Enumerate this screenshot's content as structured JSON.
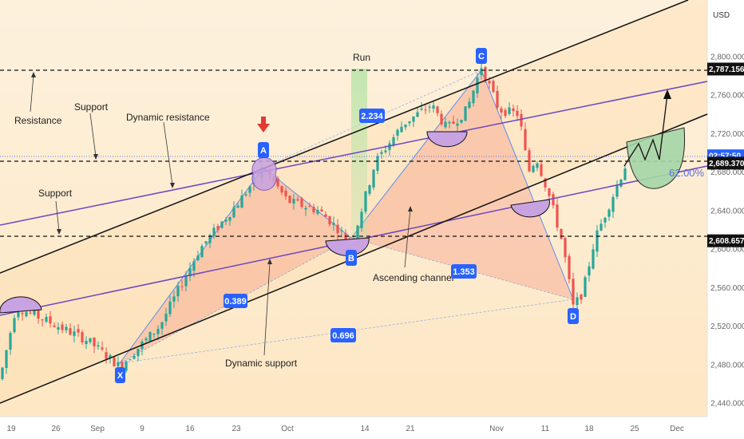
{
  "chart_data": {
    "type": "candlestick",
    "currency": "USD",
    "y_range": [
      2420,
      2840
    ],
    "x_ticks": [
      "19",
      "26",
      "Sep",
      "9",
      "16",
      "23",
      "Oct",
      "14",
      "21",
      "Nov",
      "11",
      "18",
      "25",
      "Dec"
    ],
    "y_ticks": [
      "2,440.000",
      "2,480.000",
      "2,520.000",
      "2,560.000",
      "2,600.000",
      "2,640.000",
      "2,680.000",
      "2,720.000",
      "2,760.000",
      "2,800.000"
    ],
    "price_tags": [
      {
        "label": "2,787.156",
        "value": 2787.156,
        "style": "dark"
      },
      {
        "label": "02:57:50",
        "value": 2697,
        "style": "blue"
      },
      {
        "label": "2,689.370",
        "value": 2689.37,
        "style": "dark"
      },
      {
        "label": "2,608.657",
        "value": 2608.657,
        "style": "dark"
      }
    ],
    "harmonic_points": [
      {
        "name": "X",
        "x": "Sep 2",
        "y": 2476
      },
      {
        "name": "A",
        "x": "Sep 27",
        "y": 2685
      },
      {
        "name": "B",
        "x": "Oct 10",
        "y": 2604
      },
      {
        "name": "C",
        "x": "Oct 31",
        "y": 2790
      },
      {
        "name": "D",
        "x": "Nov 14",
        "y": 2537
      }
    ],
    "ratios": [
      {
        "label": "0.389",
        "leg": "XB"
      },
      {
        "label": "2.234",
        "leg": "AC"
      },
      {
        "label": "1.353",
        "leg": "BD"
      },
      {
        "label": "0.696",
        "leg": "XD"
      }
    ],
    "annotations": {
      "resistance": "Resistance",
      "support_top": "Support",
      "dynamic_resistance": "Dynamic resistance",
      "support_left": "Support",
      "run": "Run",
      "ascending_channel": "Ascending channel",
      "dynamic_support": "Dynamic support",
      "percent": "62.00%"
    },
    "levels": {
      "resistance": 2787.156,
      "support": 2689.37,
      "lower_support": 2608.657
    },
    "colors": {
      "bull": "#26a69a",
      "bear": "#ef5350",
      "label_blue": "#2962ff",
      "channel": "#000000",
      "purple_line": "#6b46c1",
      "arrow_red": "#e53935",
      "green_zone": "#a5d6a7"
    }
  }
}
